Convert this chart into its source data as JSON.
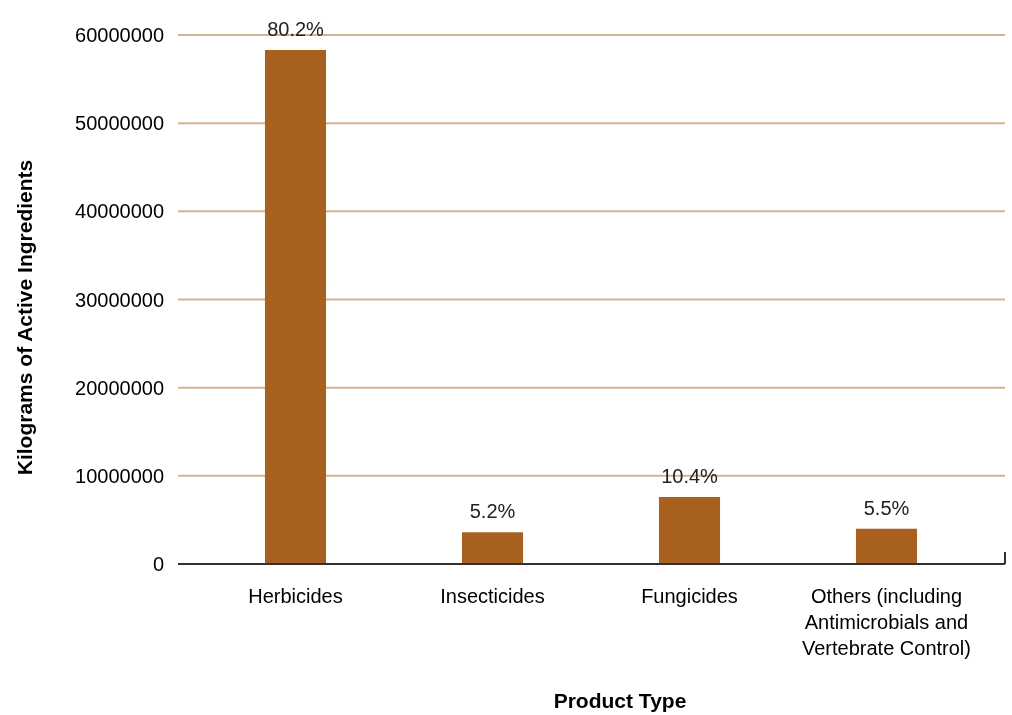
{
  "chart_data": {
    "type": "bar",
    "xlabel": "Product Type",
    "ylabel": "Kilograms of Active Ingredients",
    "categories": [
      "Herbicides",
      "Insecticides",
      "Fungicides",
      "Others (including Antimicrobials and Vertebrate Control)"
    ],
    "values": [
      58300000,
      3600000,
      7600000,
      4000000
    ],
    "annotations": [
      {
        "text": "80.2%",
        "x": "Herbicides",
        "y": 58300000
      },
      {
        "text": "5.2%",
        "x": "Insecticides",
        "y": 3600000
      },
      {
        "text": "10.4%",
        "x": "Fungicides",
        "y": 7600000
      },
      {
        "text": "5.5%",
        "x": "Others (including Antimicrobials and Vertebrate Control)",
        "y": 4000000
      }
    ],
    "color": "#a8601e",
    "ylim": [
      0,
      60000000
    ],
    "yticks": [
      0,
      10000000,
      20000000,
      30000000,
      40000000,
      50000000,
      60000000
    ],
    "grid": "y"
  }
}
